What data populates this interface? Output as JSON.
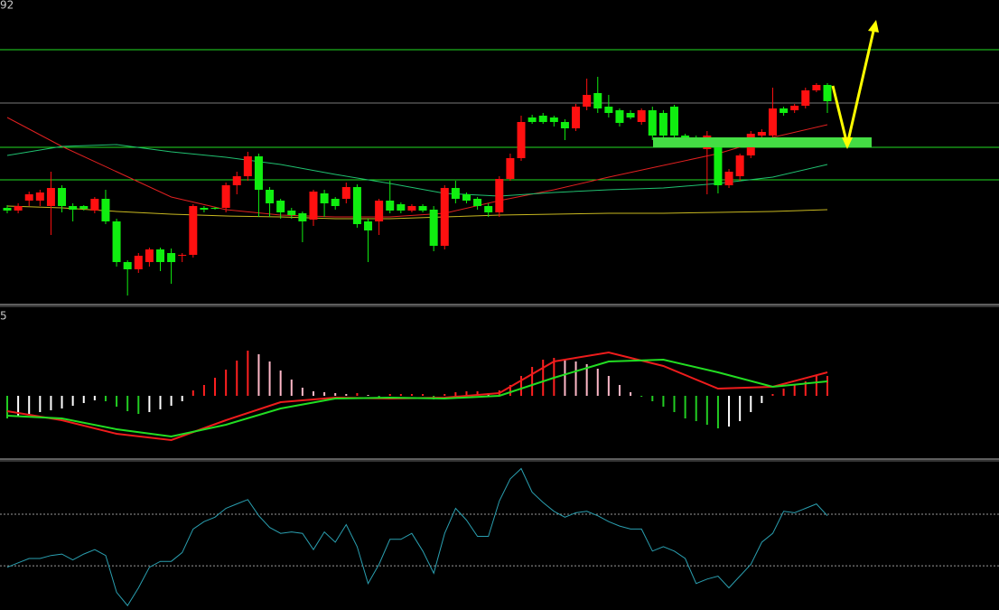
{
  "chart_data": [
    {
      "type": "candlestick",
      "label": "92",
      "xlim": [
        0,
        75
      ],
      "ylim": [
        0,
        340
      ],
      "up_color": "#ff1010",
      "down_color": "#10ee10",
      "open": [
        110,
        107,
        118,
        118,
        112,
        132,
        112,
        112,
        107,
        120,
        95,
        50,
        42,
        50,
        64,
        60,
        57,
        58,
        110,
        110,
        110,
        135,
        145,
        167,
        130,
        118,
        107,
        104,
        97,
        126,
        120,
        120,
        133,
        95,
        95,
        118,
        114,
        107,
        112,
        108,
        68,
        132,
        125,
        120,
        112,
        105,
        142,
        165,
        210,
        212,
        210,
        205,
        198,
        222,
        237,
        222,
        218,
        215,
        205,
        218,
        215,
        222,
        190,
        188,
        175,
        183,
        135,
        145,
        168,
        190,
        190,
        220,
        218,
        223,
        240,
        246
      ],
      "high": [
        113,
        115,
        128,
        130,
        150,
        135,
        115,
        113,
        122,
        130,
        98,
        52,
        60,
        66,
        66,
        65,
        60,
        114,
        112,
        111,
        138,
        150,
        172,
        170,
        133,
        120,
        110,
        106,
        130,
        130,
        122,
        138,
        136,
        98,
        120,
        140,
        116,
        114,
        114,
        112,
        135,
        140,
        127,
        122,
        115,
        145,
        170,
        212,
        213,
        215,
        212,
        208,
        225,
        253,
        255,
        235,
        220,
        218,
        220,
        222,
        218,
        224,
        192,
        190,
        195,
        186,
        153,
        170,
        195,
        197,
        243,
        222,
        225,
        243,
        248,
        248
      ],
      "low": [
        104,
        104,
        112,
        112,
        80,
        105,
        95,
        107,
        104,
        92,
        45,
        13,
        38,
        45,
        40,
        26,
        50,
        55,
        105,
        108,
        105,
        125,
        140,
        100,
        100,
        98,
        98,
        72,
        90,
        100,
        108,
        115,
        88,
        50,
        80,
        104,
        104,
        105,
        105,
        62,
        64,
        115,
        115,
        108,
        100,
        100,
        140,
        162,
        203,
        203,
        200,
        185,
        195,
        218,
        215,
        210,
        200,
        208,
        202,
        185,
        186,
        185,
        182,
        178,
        125,
        126,
        132,
        140,
        165,
        187,
        185,
        212,
        215,
        220,
        238,
        215
      ],
      "close": [
        107,
        112,
        125,
        127,
        132,
        112,
        108,
        109,
        120,
        95,
        50,
        42,
        57,
        64,
        50,
        50,
        58,
        112,
        108,
        109,
        135,
        145,
        167,
        130,
        115,
        105,
        102,
        95,
        128,
        115,
        112,
        133,
        92,
        85,
        118,
        107,
        107,
        112,
        107,
        68,
        132,
        120,
        118,
        112,
        105,
        142,
        165,
        205,
        205,
        205,
        205,
        198,
        222,
        235,
        220,
        215,
        204,
        210,
        218,
        190,
        190,
        190,
        185,
        182,
        190,
        135,
        150,
        168,
        192,
        194,
        220,
        215,
        223,
        240,
        246,
        228
      ],
      "lines": [
        {
          "color": "#e02020",
          "x": [
            0,
            5,
            10,
            15,
            20,
            25,
            30,
            35,
            40,
            45,
            50,
            55,
            60,
            65,
            70,
            75
          ],
          "values": [
            210,
            178,
            150,
            122,
            108,
            102,
            100,
            100,
            104,
            118,
            130,
            144,
            157,
            170,
            188,
            202
          ]
        },
        {
          "color": "#20c070",
          "x": [
            0,
            5,
            10,
            15,
            20,
            25,
            30,
            35,
            40,
            45,
            50,
            55,
            60,
            65,
            70,
            75
          ],
          "values": [
            168,
            178,
            180,
            172,
            166,
            158,
            147,
            137,
            126,
            123,
            127,
            130,
            132,
            137,
            144,
            158
          ]
        },
        {
          "color": "#c8b820",
          "x": [
            0,
            5,
            10,
            15,
            20,
            25,
            30,
            35,
            40,
            45,
            50,
            55,
            60,
            65,
            70,
            75
          ],
          "values": [
            112,
            110,
            106,
            103,
            101,
            100,
            98,
            98,
            100,
            102,
            103,
            104,
            104,
            105,
            106,
            108
          ]
        }
      ],
      "hlines": [
        {
          "value": 285,
          "color": "#22dd22"
        },
        {
          "value": 226,
          "color": "#777777"
        },
        {
          "value": 177,
          "color": "#22dd22"
        },
        {
          "value": 141,
          "color": "#22dd22"
        }
      ]
    },
    {
      "type": "macd",
      "label": "5",
      "xlim": [
        0,
        75
      ],
      "ylim": [
        -70,
        95
      ],
      "bar_colors": {
        "up_rising": "#ff2020",
        "up_falling": "#ffb8c8",
        "down_falling": "#22cc22",
        "down_rising": "#ffffff"
      },
      "histogram": [
        -25,
        -23,
        -20,
        -18,
        -16,
        -14,
        -11,
        -8,
        -5,
        -6,
        -12,
        -17,
        -20,
        -18,
        -15,
        -11,
        -6,
        6,
        12,
        20,
        29,
        39,
        50,
        46,
        38,
        28,
        18,
        9,
        5,
        4,
        3,
        2,
        3,
        1,
        -2,
        2,
        2,
        2,
        2,
        -4,
        2,
        4,
        5,
        5,
        3,
        6,
        12,
        22,
        32,
        40,
        42,
        40,
        38,
        35,
        30,
        22,
        12,
        4,
        -1,
        -6,
        -12,
        -18,
        -25,
        -28,
        -32,
        -36,
        -34,
        -28,
        -18,
        -8,
        2,
        8,
        12,
        16,
        22,
        22
      ],
      "lines": [
        {
          "color": "#ee1c1c",
          "x": [
            0,
            5,
            10,
            15,
            20,
            25,
            30,
            35,
            40,
            45,
            50,
            55,
            60,
            65,
            70,
            75
          ],
          "values": [
            -17,
            -27,
            -42,
            -49,
            -27,
            -7,
            -2,
            -3,
            -2,
            3,
            38,
            48,
            33,
            8,
            10,
            26
          ]
        },
        {
          "color": "#22dd22",
          "x": [
            0,
            5,
            10,
            15,
            20,
            25,
            30,
            35,
            40,
            45,
            50,
            55,
            60,
            65,
            70,
            75
          ],
          "values": [
            -22,
            -25,
            -37,
            -45,
            -32,
            -14,
            -3,
            -2,
            -3,
            0,
            20,
            38,
            40,
            26,
            10,
            16
          ]
        }
      ]
    },
    {
      "type": "line",
      "xlim": [
        0,
        75
      ],
      "ylim": [
        0,
        100
      ],
      "color": "#2a9fb0",
      "ref_lines": [
        65,
        30
      ],
      "values": [
        29,
        32,
        35,
        35,
        37,
        38,
        34,
        38,
        41,
        37,
        12,
        3,
        15,
        29,
        33,
        33,
        39,
        55,
        60,
        63,
        69,
        72,
        75,
        64,
        56,
        52,
        53,
        52,
        41,
        53,
        46,
        58,
        43,
        18,
        31,
        48,
        48,
        52,
        40,
        25,
        52,
        69,
        61,
        50,
        50,
        74,
        89,
        96,
        80,
        73,
        67,
        63,
        66,
        67,
        64,
        60,
        57,
        55,
        55,
        40,
        43,
        40,
        35,
        18,
        21,
        23,
        15,
        23,
        31,
        46,
        52,
        67,
        66,
        69,
        72,
        64
      ]
    }
  ]
}
